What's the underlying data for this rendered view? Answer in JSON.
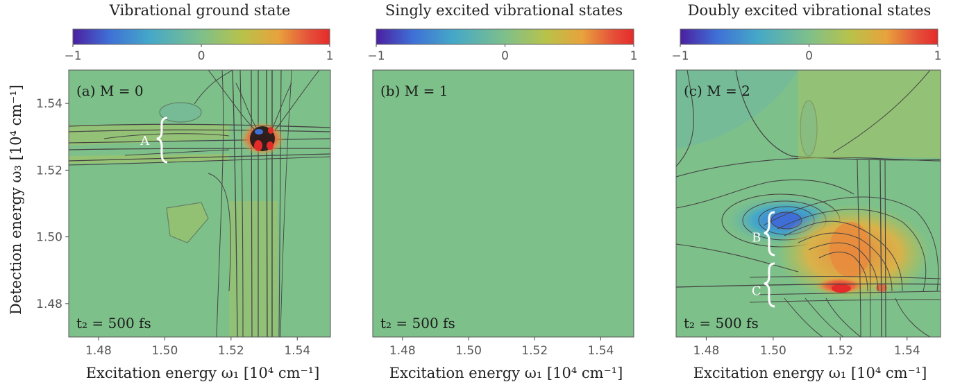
{
  "figure": {
    "ylabel": "Detection energy ω₃ [10⁴ cm⁻¹]",
    "xlabel": "Excitation energy ω₁ [10⁴ cm⁻¹]"
  },
  "colorbar": {
    "ticks": [
      -1,
      0,
      1
    ],
    "tick_labels": [
      "−1",
      "0",
      "1"
    ],
    "colors": [
      "#4b1fa0",
      "#3f6fd6",
      "#45a8c8",
      "#7ec08a",
      "#b8c24a",
      "#e8a23c",
      "#e5503a",
      "#e52a2a"
    ]
  },
  "chart_data": [
    {
      "type": "heatmap",
      "title": "Vibrational ground state",
      "panel_label": "(a) M = 0",
      "time_label": "t₂ = 500 fs",
      "xlim": [
        1.471,
        1.55
      ],
      "ylim": [
        1.47,
        1.55
      ],
      "x_ticks": [
        1.48,
        1.5,
        1.52,
        1.54
      ],
      "y_ticks": [
        1.48,
        1.5,
        1.52,
        1.54
      ],
      "x_tick_labels": [
        "1.48",
        "1.50",
        "1.52",
        "1.54"
      ],
      "y_tick_labels": [
        "1.48",
        "1.50",
        "1.52",
        "1.54"
      ],
      "annotations": [
        {
          "text": "A",
          "x": 1.494,
          "y": 1.529
        }
      ]
    },
    {
      "type": "heatmap",
      "title": "Singly excited vibrational states",
      "panel_label": "(b) M = 1",
      "time_label": "t₂ = 500 fs",
      "xlim": [
        1.471,
        1.55
      ],
      "ylim": [
        1.47,
        1.55
      ],
      "x_ticks": [
        1.48,
        1.5,
        1.52,
        1.54
      ],
      "x_tick_labels": [
        "1.48",
        "1.50",
        "1.52",
        "1.54"
      ],
      "annotations": []
    },
    {
      "type": "heatmap",
      "title": "Doubly excited vibrational states",
      "panel_label": "(c) M = 2",
      "time_label": "t₂ = 500 fs",
      "xlim": [
        1.471,
        1.55
      ],
      "ylim": [
        1.47,
        1.55
      ],
      "x_ticks": [
        1.48,
        1.5,
        1.52,
        1.54
      ],
      "x_tick_labels": [
        "1.48",
        "1.50",
        "1.52",
        "1.54"
      ],
      "annotations": [
        {
          "text": "B",
          "x": 1.495,
          "y": 1.5
        },
        {
          "text": "C",
          "x": 1.495,
          "y": 1.484
        }
      ]
    }
  ]
}
